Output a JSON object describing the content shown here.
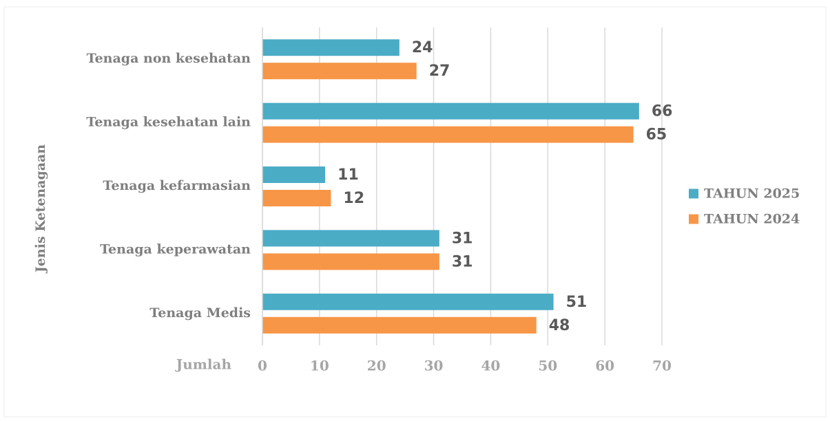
{
  "chart_data": {
    "type": "bar",
    "orientation": "horizontal",
    "categories": [
      "Tenaga non kesehatan",
      "Tenaga kesehatan lain",
      "Tenaga kefarmasian",
      "Tenaga keperawatan",
      "Tenaga Medis"
    ],
    "series": [
      {
        "name": "TAHUN 2025",
        "color": "#4bacc6",
        "values": [
          24,
          66,
          11,
          31,
          51
        ]
      },
      {
        "name": "TAHUN 2024",
        "color": "#f79646",
        "values": [
          27,
          65,
          12,
          31,
          48
        ]
      }
    ],
    "xlim": [
      0,
      70
    ],
    "xticks": [
      0,
      10,
      20,
      30,
      40,
      50,
      60,
      70
    ],
    "xlabel": "Jumlah",
    "ylabel": "Jenis Ketenagaan",
    "grid": true,
    "legend": "right"
  }
}
